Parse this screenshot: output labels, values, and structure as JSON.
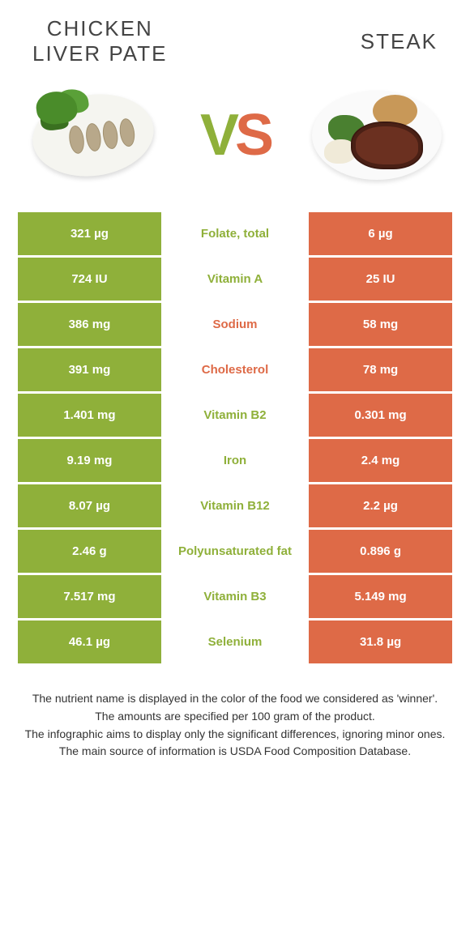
{
  "colors": {
    "green": "#8fb03a",
    "orange": "#de6a47"
  },
  "header": {
    "left_title": "CHICKEN\nLIVER PATE",
    "right_title": "STEAK",
    "vs_v": "V",
    "vs_s": "S"
  },
  "rows": [
    {
      "left": "321 µg",
      "label": "Folate, total",
      "right": "6 µg",
      "winner": "left"
    },
    {
      "left": "724 IU",
      "label": "Vitamin A",
      "right": "25 IU",
      "winner": "left"
    },
    {
      "left": "386 mg",
      "label": "Sodium",
      "right": "58 mg",
      "winner": "right"
    },
    {
      "left": "391 mg",
      "label": "Cholesterol",
      "right": "78 mg",
      "winner": "right"
    },
    {
      "left": "1.401 mg",
      "label": "Vitamin B2",
      "right": "0.301 mg",
      "winner": "left"
    },
    {
      "left": "9.19 mg",
      "label": "Iron",
      "right": "2.4 mg",
      "winner": "left"
    },
    {
      "left": "8.07 µg",
      "label": "Vitamin B12",
      "right": "2.2 µg",
      "winner": "left"
    },
    {
      "left": "2.46 g",
      "label": "Polyunsaturated fat",
      "right": "0.896 g",
      "winner": "left"
    },
    {
      "left": "7.517 mg",
      "label": "Vitamin B3",
      "right": "5.149 mg",
      "winner": "left"
    },
    {
      "left": "46.1 µg",
      "label": "Selenium",
      "right": "31.8 µg",
      "winner": "left"
    }
  ],
  "footer": {
    "line1": "The nutrient name is displayed in the color of the food we considered as 'winner'.",
    "line2": "The amounts are specified per 100 gram of the product.",
    "line3": "The infographic aims to display only the significant differences, ignoring minor ones.",
    "line4": "The main source of information is USDA Food Composition Database."
  }
}
